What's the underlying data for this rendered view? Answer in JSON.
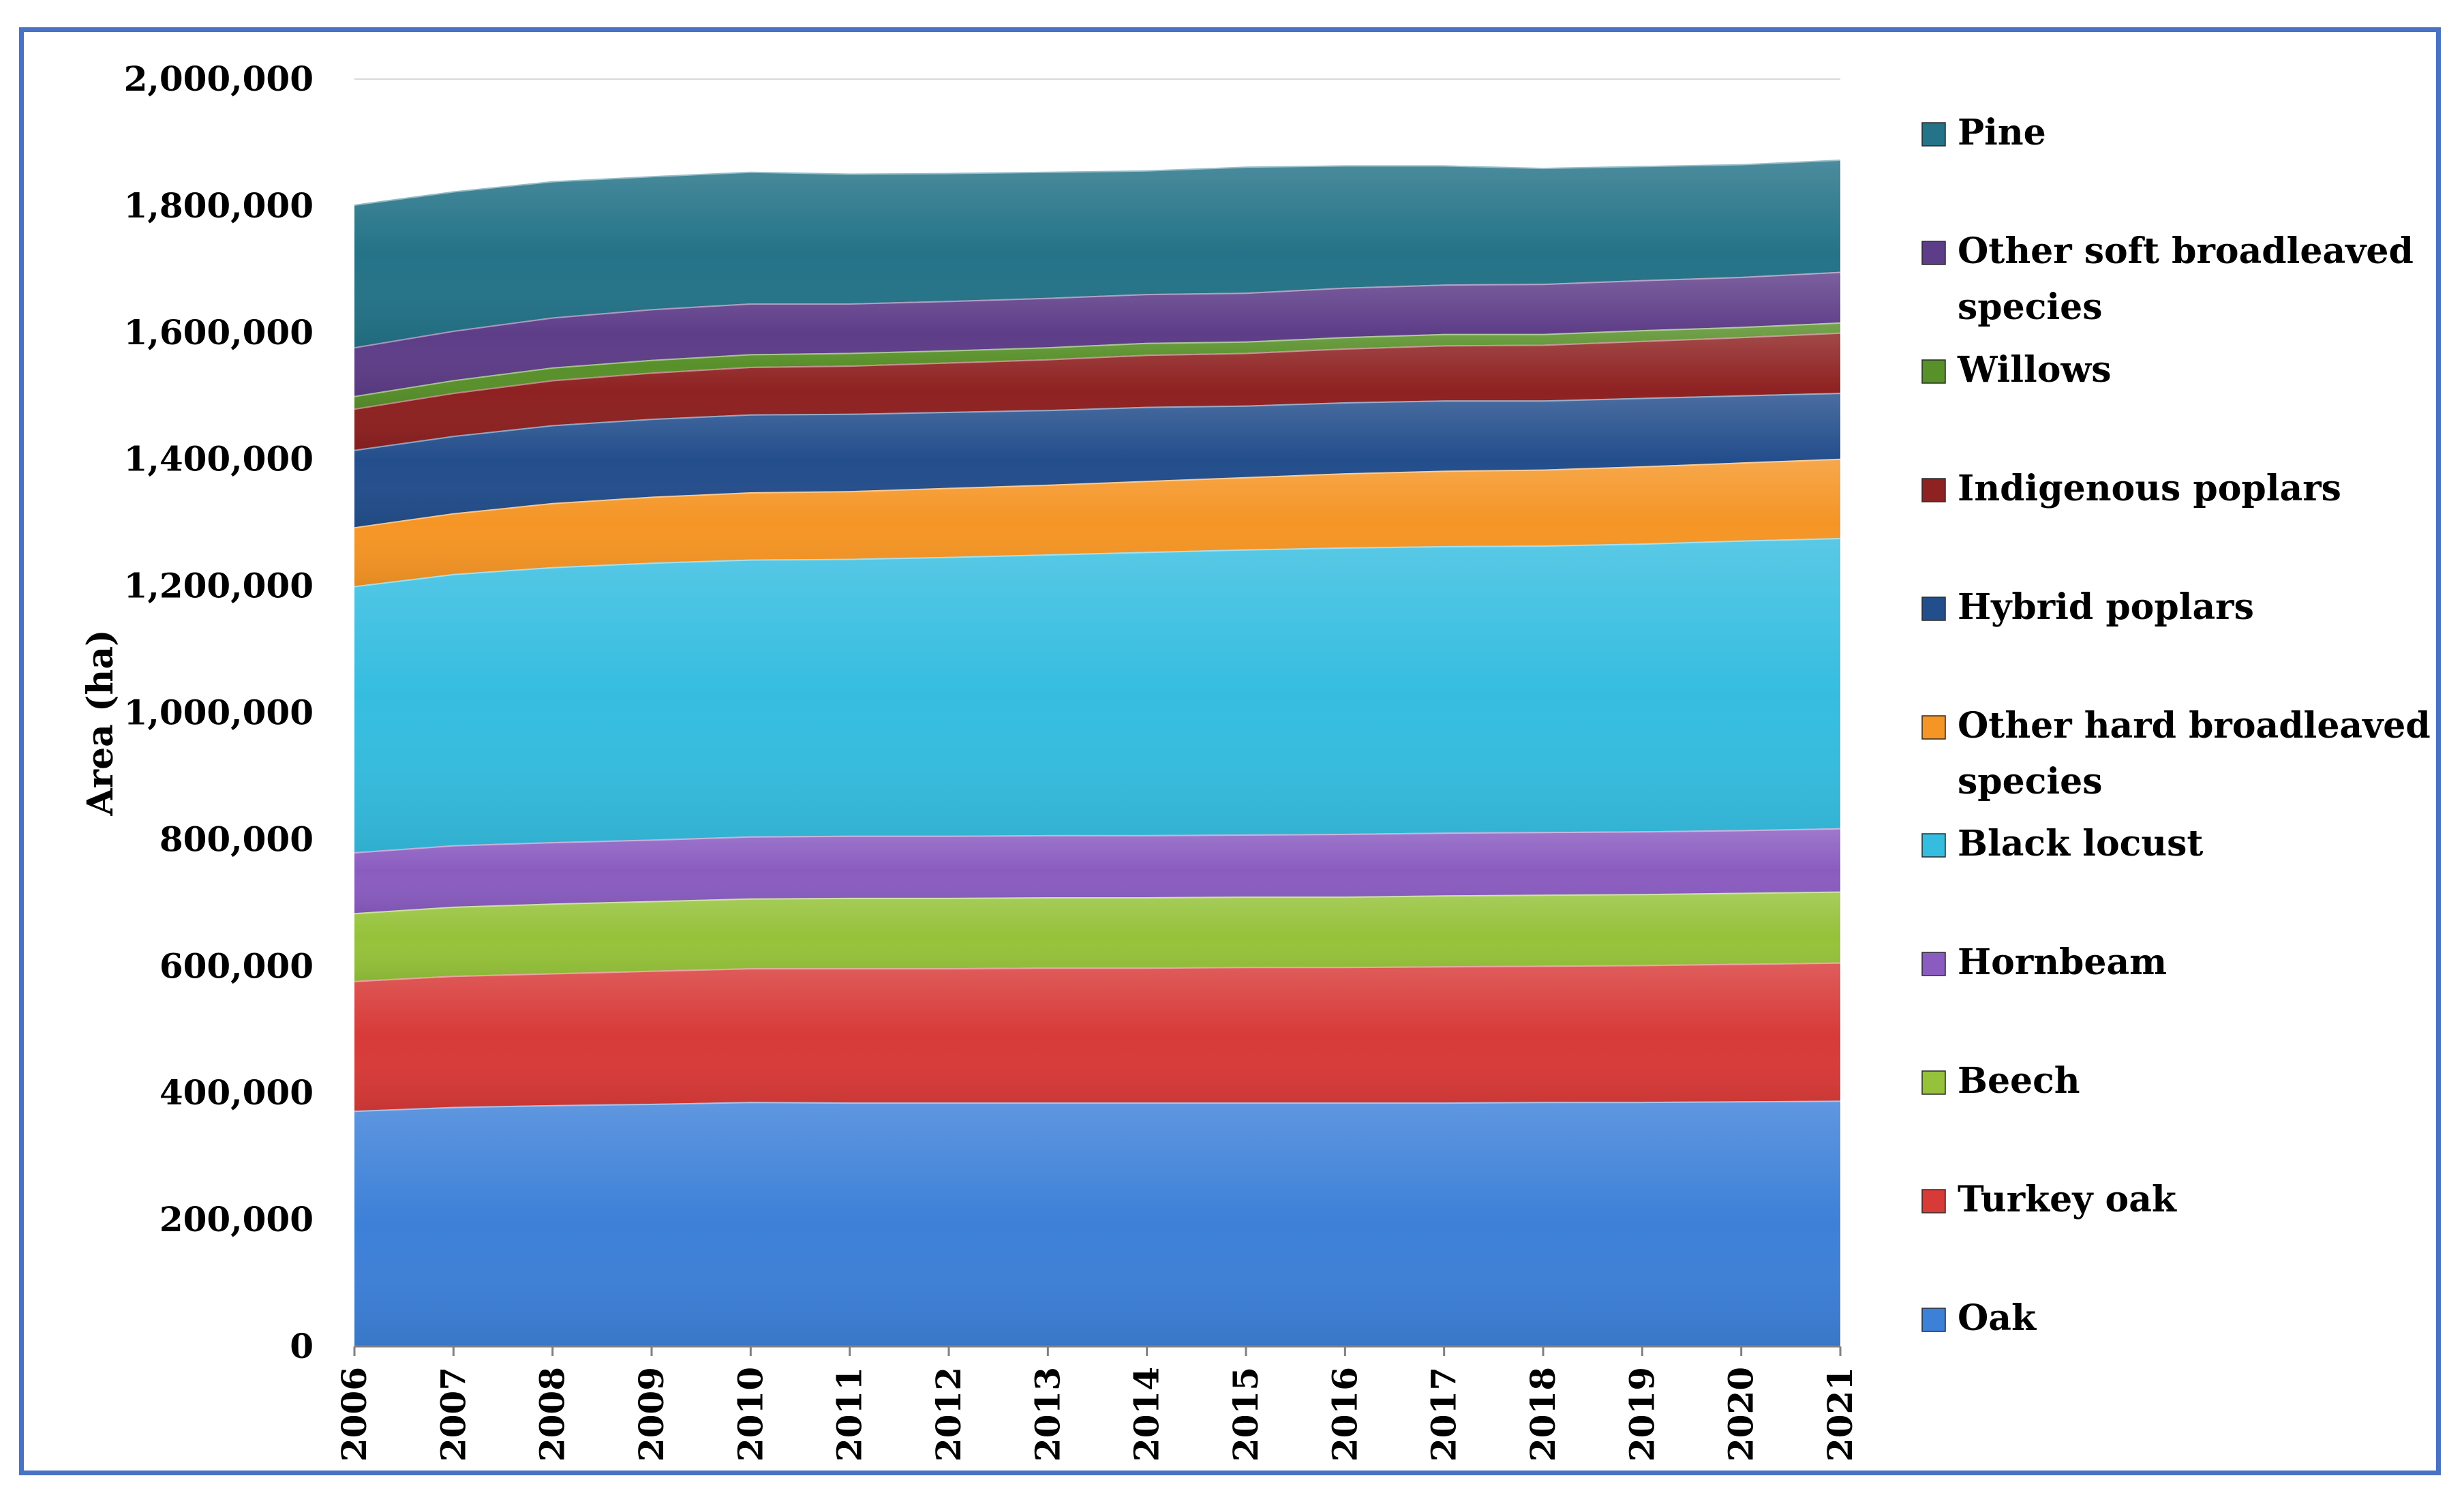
{
  "chart_data": {
    "type": "area",
    "stacked": true,
    "ylabel": "Area (ha)",
    "xlabel": "",
    "ylim": [
      0,
      2000000
    ],
    "yticks": [
      "0",
      "200,000",
      "400,000",
      "600,000",
      "800,000",
      "1,000,000",
      "1,200,000",
      "1,400,000",
      "1,600,000",
      "1,800,000",
      "2,000,000"
    ],
    "ytick_values": [
      0,
      200000,
      400000,
      600000,
      800000,
      1000000,
      1200000,
      1400000,
      1600000,
      1800000,
      2000000
    ],
    "categories": [
      "2006",
      "2007",
      "2008",
      "2009",
      "2010",
      "2011",
      "2012",
      "2013",
      "2014",
      "2015",
      "2016",
      "2017",
      "2018",
      "2019",
      "2020",
      "2021"
    ],
    "grid": "horizontal",
    "legend_position": "right",
    "series": [
      {
        "name": "Oak",
        "color": "#3d80d8",
        "values": [
          372000,
          378000,
          381000,
          383000,
          386000,
          385000,
          385000,
          385000,
          385000,
          385000,
          385000,
          385000,
          386000,
          386000,
          387000,
          388000
        ]
      },
      {
        "name": "Turkey oak",
        "color": "#d83a38",
        "values": [
          205000,
          207000,
          208000,
          210000,
          211000,
          212000,
          212000,
          213000,
          213000,
          214000,
          214000,
          215000,
          215000,
          216000,
          217000,
          218000
        ]
      },
      {
        "name": "Beech",
        "color": "#95c23a",
        "values": [
          107000,
          109000,
          110000,
          110000,
          110000,
          111000,
          111000,
          111000,
          111000,
          111000,
          111000,
          112000,
          112000,
          112000,
          112000,
          112000
        ]
      },
      {
        "name": "Hornbeam",
        "color": "#8a5cc0",
        "values": [
          96000,
          97000,
          97000,
          97000,
          98000,
          98000,
          98000,
          98000,
          98000,
          98000,
          99000,
          99000,
          99000,
          99000,
          99000,
          100000
        ]
      },
      {
        "name": "Black locust",
        "color": "#35bde0",
        "values": [
          420000,
          428000,
          434000,
          437000,
          437000,
          437000,
          440000,
          443000,
          447000,
          450000,
          452000,
          452000,
          452000,
          454000,
          457000,
          458000
        ]
      },
      {
        "name": "Other hard broadleaved species",
        "color": "#f59525",
        "values": [
          93000,
          96000,
          101000,
          104000,
          106000,
          107000,
          109000,
          110000,
          112000,
          114000,
          117000,
          119000,
          120000,
          122000,
          123000,
          125000
        ]
      },
      {
        "name": "Hybrid poplars",
        "color": "#234e8c",
        "values": [
          122000,
          122000,
          123000,
          123000,
          123000,
          122000,
          120000,
          118000,
          117000,
          113000,
          112000,
          111000,
          109000,
          108000,
          106000,
          104000
        ]
      },
      {
        "name": "Indigenous poplars",
        "color": "#8e2121",
        "values": [
          65000,
          68000,
          71000,
          73000,
          75000,
          76000,
          78000,
          80000,
          82000,
          83000,
          85000,
          87000,
          88000,
          90000,
          92000,
          95000
        ]
      },
      {
        "name": "Willows",
        "color": "#58902a",
        "values": [
          20000,
          20000,
          20000,
          20000,
          20000,
          20000,
          19000,
          19000,
          19000,
          18000,
          18000,
          18000,
          17000,
          17000,
          16000,
          16000
        ]
      },
      {
        "name": "Other soft broadleaved species",
        "color": "#5e3d88",
        "values": [
          77000,
          78000,
          79000,
          80000,
          80000,
          78000,
          78000,
          78000,
          77000,
          77000,
          78000,
          78000,
          79000,
          79000,
          79000,
          80000
        ]
      },
      {
        "name": "Pine",
        "color": "#247388",
        "values": [
          225000,
          220000,
          215000,
          210000,
          208000,
          205000,
          202000,
          199000,
          195000,
          199000,
          193000,
          188000,
          183000,
          180000,
          178000,
          177000
        ]
      }
    ]
  }
}
